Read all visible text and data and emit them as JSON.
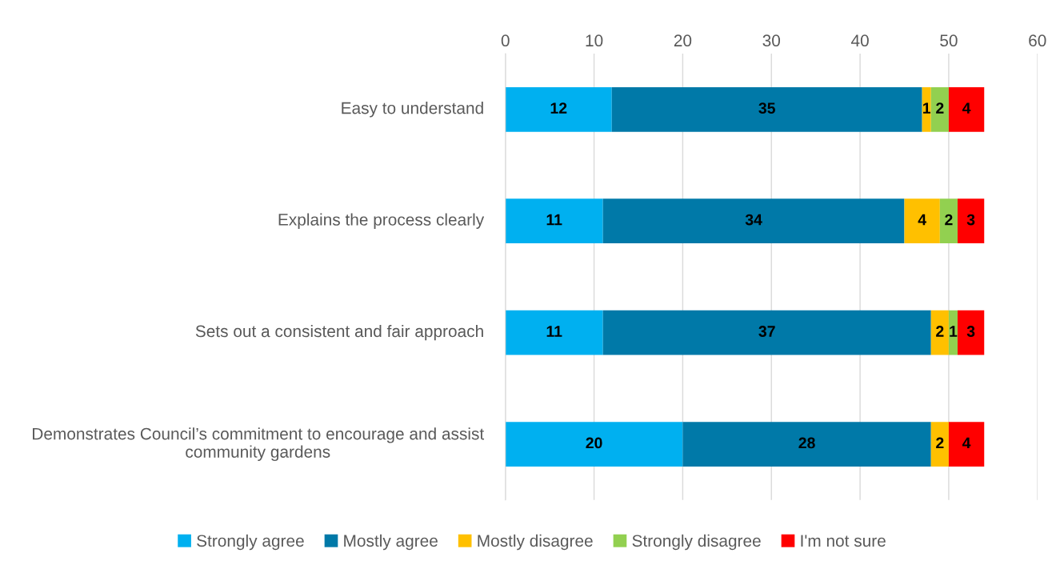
{
  "chart_data": {
    "type": "bar",
    "orientation": "horizontal",
    "stacked": true,
    "categories": [
      "Easy to understand",
      "Explains the process clearly",
      "Sets out a consistent and fair approach",
      "Demonstrates Council’s commitment to encourage and assist community gardens"
    ],
    "series": [
      {
        "name": "Strongly agree",
        "color": "#00b0f0",
        "values": [
          12,
          11,
          11,
          20
        ]
      },
      {
        "name": "Mostly agree",
        "color": "#0079a8",
        "values": [
          35,
          34,
          37,
          28
        ]
      },
      {
        "name": "Mostly disagree",
        "color": "#ffc000",
        "values": [
          1,
          4,
          2,
          2
        ]
      },
      {
        "name": "Strongly disagree",
        "color": "#92d050",
        "values": [
          2,
          2,
          1,
          null
        ]
      },
      {
        "name": "I'm not sure",
        "color": "#ff0000",
        "values": [
          4,
          3,
          3,
          4
        ]
      }
    ],
    "xlim": [
      0,
      60
    ],
    "xticks": [
      0,
      10,
      20,
      30,
      40,
      50,
      60
    ],
    "grid": "x",
    "legend": "bottom",
    "data_labels": true
  }
}
